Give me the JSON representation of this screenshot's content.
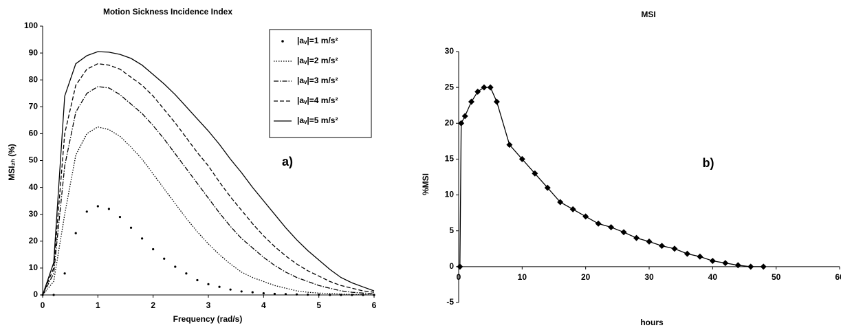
{
  "chart_data": [
    {
      "type": "line",
      "title": "Motion Sickness Incidence Index",
      "xlabel": "Frequency (rad/s)",
      "ylabel": "MSI₂ₕ (%)",
      "annotation": "a)",
      "legend": "upper right",
      "x": [
        0,
        0.2,
        0.4,
        0.6,
        0.8,
        1,
        1.2,
        1.4,
        1.6,
        1.8,
        2,
        2.2,
        2.4,
        2.6,
        2.8,
        3,
        3.2,
        3.4,
        3.6,
        3.8,
        4,
        4.2,
        4.4,
        4.6,
        4.8,
        5,
        5.2,
        5.4,
        5.6,
        5.8,
        6
      ],
      "series": [
        {
          "name": "|aᵥ|=1 m/s²",
          "color": "#000000",
          "style": "dots",
          "values": [
            0,
            0,
            8,
            23,
            31,
            33,
            32,
            29,
            25,
            21,
            17,
            13.5,
            10.5,
            8,
            5.5,
            4,
            3,
            2,
            1.3,
            1,
            0.6,
            0.4,
            0.3,
            0.2,
            0.1,
            0.1,
            0,
            0,
            0,
            0,
            0
          ]
        },
        {
          "name": "|aᵥ|=2 m/s²",
          "color": "#000000",
          "style": "dotted",
          "values": [
            0,
            5,
            30,
            52,
            60,
            62.5,
            61.5,
            59,
            55,
            50.5,
            45,
            39.5,
            34,
            28.5,
            23.5,
            19,
            15,
            11.5,
            8.5,
            6.5,
            5,
            3.5,
            2.5,
            1.5,
            1,
            0.7,
            0.5,
            0.3,
            0.2,
            0.1,
            0
          ]
        },
        {
          "name": "|aᵥ|=3 m/s²",
          "color": "#000000",
          "style": "dashdot",
          "values": [
            0,
            8,
            48,
            68,
            75,
            77.5,
            77,
            74.5,
            71,
            67.5,
            63,
            58,
            52.5,
            47,
            41.5,
            36,
            30.5,
            25.5,
            21,
            17.5,
            14,
            11,
            8.5,
            6.5,
            5,
            3.5,
            2.5,
            1.5,
            1,
            0.7,
            0.5
          ]
        },
        {
          "name": "|aᵥ|=4 m/s²",
          "color": "#000000",
          "style": "dashed",
          "values": [
            0,
            10,
            60,
            78,
            84,
            86,
            85.5,
            84,
            81,
            78,
            74,
            69,
            64,
            58.5,
            53,
            48,
            42,
            36.5,
            31.5,
            26.5,
            22,
            18,
            14.5,
            11.5,
            9,
            7,
            5,
            3.5,
            2.5,
            1.5,
            1
          ]
        },
        {
          "name": "|aᵥ|=5 m/s²",
          "color": "#000000",
          "style": "solid",
          "values": [
            0,
            12,
            74,
            86,
            89,
            90.5,
            90.3,
            89.5,
            88,
            85.5,
            82,
            78.5,
            74.5,
            70,
            65.5,
            61,
            56,
            50.5,
            45.5,
            40,
            35,
            30,
            25,
            20.5,
            16.5,
            13,
            9.5,
            6.5,
            4.5,
            3,
            1.5
          ]
        }
      ],
      "xlim": [
        0,
        6
      ],
      "xticks": [
        0,
        1,
        2,
        3,
        4,
        5,
        6
      ],
      "ylim": [
        0,
        100
      ],
      "yticks": [
        0,
        10,
        20,
        30,
        40,
        50,
        60,
        70,
        80,
        90,
        100
      ]
    },
    {
      "type": "line",
      "title": "MSI",
      "xlabel": "hours",
      "ylabel": "%MSI",
      "annotation": "b)",
      "x": [
        0.2,
        0.4,
        1,
        2,
        3,
        4,
        5,
        6,
        8,
        10,
        12,
        14,
        16,
        18,
        20,
        22,
        24,
        26,
        28,
        30,
        32,
        34,
        36,
        38,
        40,
        42,
        44,
        46,
        48
      ],
      "series": [
        {
          "name": "MSI",
          "color": "#000000",
          "style": "solid",
          "marker": "diamond",
          "values": [
            0,
            20,
            21,
            23,
            24.4,
            25,
            25,
            23,
            17,
            15,
            13,
            11,
            9,
            8,
            7,
            6,
            5.5,
            4.8,
            4,
            3.5,
            2.9,
            2.5,
            1.8,
            1.4,
            0.8,
            0.5,
            0.2,
            0,
            0
          ]
        }
      ],
      "xlim": [
        0,
        60
      ],
      "xticks": [
        0,
        10,
        20,
        30,
        40,
        50,
        60
      ],
      "ylim": [
        -5,
        30
      ],
      "yticks": [
        -5,
        0,
        5,
        10,
        15,
        20,
        25,
        30
      ]
    }
  ]
}
